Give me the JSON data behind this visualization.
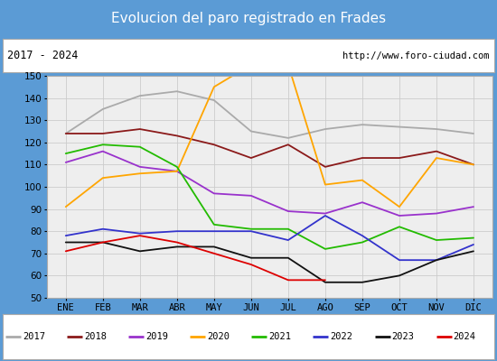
{
  "title": "Evolucion del paro registrado en Frades",
  "subtitle_left": "2017 - 2024",
  "subtitle_right": "http://www.foro-ciudad.com",
  "months": [
    "ENE",
    "FEB",
    "MAR",
    "ABR",
    "MAY",
    "JUN",
    "JUL",
    "AGO",
    "SEP",
    "OCT",
    "NOV",
    "DIC"
  ],
  "ylim": [
    50,
    150
  ],
  "yticks": [
    50,
    60,
    70,
    80,
    90,
    100,
    110,
    120,
    130,
    140,
    150
  ],
  "series": {
    "2017": {
      "color": "#aaaaaa",
      "values": [
        124,
        135,
        141,
        143,
        139,
        125,
        122,
        126,
        128,
        127,
        126,
        124
      ]
    },
    "2018": {
      "color": "#8b1a1a",
      "values": [
        124,
        124,
        126,
        123,
        119,
        113,
        119,
        109,
        113,
        113,
        116,
        110
      ]
    },
    "2019": {
      "color": "#9932cc",
      "values": [
        111,
        116,
        109,
        107,
        97,
        96,
        89,
        88,
        93,
        87,
        88,
        91
      ]
    },
    "2020": {
      "color": "#ffa500",
      "values": [
        91,
        104,
        106,
        107,
        145,
        155,
        155,
        101,
        103,
        91,
        113,
        110
      ]
    },
    "2021": {
      "color": "#22bb00",
      "values": [
        115,
        119,
        118,
        109,
        83,
        81,
        81,
        72,
        75,
        82,
        76,
        77
      ]
    },
    "2022": {
      "color": "#3333cc",
      "values": [
        78,
        81,
        79,
        80,
        80,
        80,
        76,
        87,
        78,
        67,
        67,
        74
      ]
    },
    "2023": {
      "color": "#111111",
      "values": [
        75,
        75,
        71,
        73,
        73,
        68,
        68,
        57,
        57,
        60,
        67,
        71
      ]
    },
    "2024": {
      "color": "#dd0000",
      "values": [
        71,
        75,
        78,
        75,
        70,
        65,
        58,
        58,
        null,
        null,
        null,
        null
      ]
    }
  },
  "title_bg": "#5b9bd5",
  "title_color": "white",
  "title_fontsize": 11,
  "grid_color": "#cccccc",
  "plot_bg": "#eeeeee"
}
